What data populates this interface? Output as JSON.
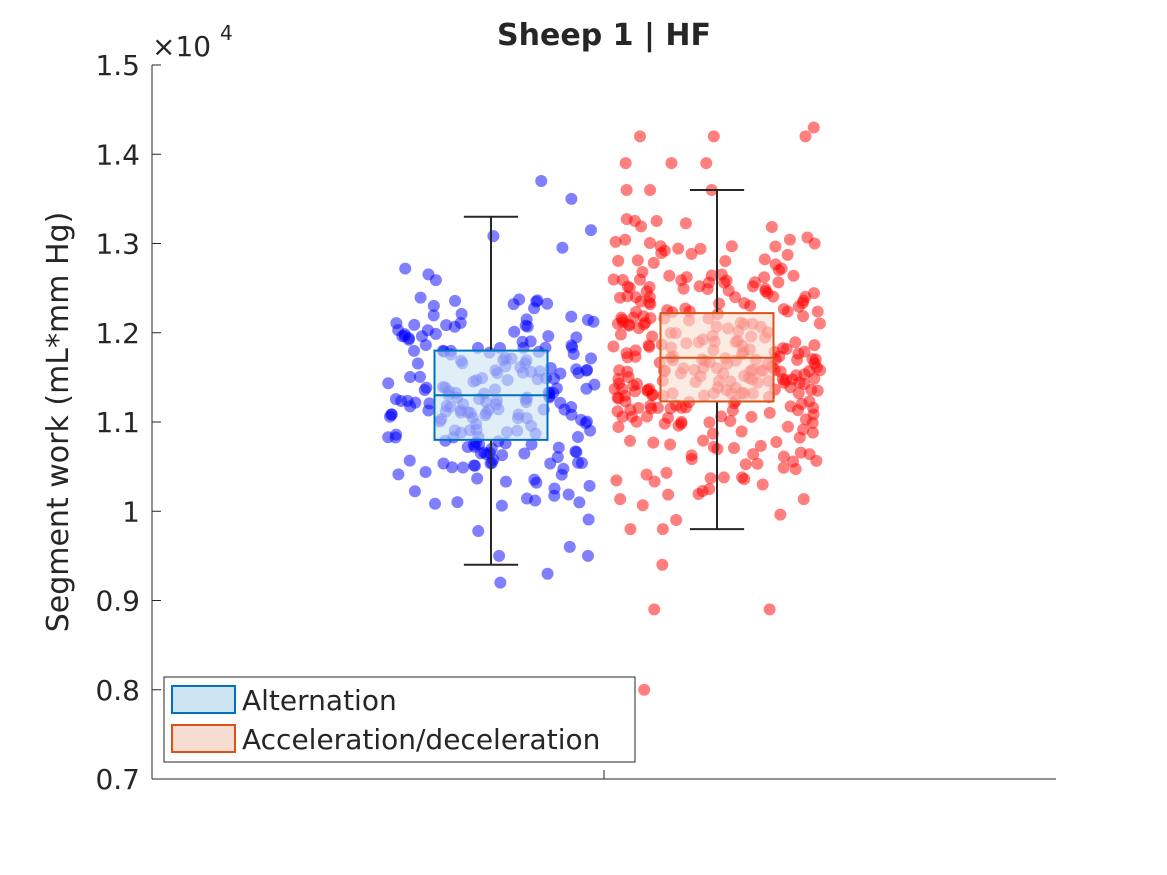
{
  "chart_data": {
    "type": "box",
    "title": "Sheep 1 | HF",
    "ylabel": "Segment work (mL*mm Hg)",
    "xlabel": "",
    "exponent_label": "×10",
    "exponent_power": "4",
    "ylim": [
      0.7,
      1.5
    ],
    "yticks": [
      "0.7",
      "0.8",
      "0.9",
      "1",
      "1.1",
      "1.2",
      "1.3",
      "1.4",
      "1.5"
    ],
    "ytick_values": [
      0.7,
      0.8,
      0.9,
      1.0,
      1.1,
      1.2,
      1.3,
      1.4,
      1.5
    ],
    "legend_placement": "bottom-left",
    "series": [
      {
        "name": "Alternation",
        "box_color": "#0072BD",
        "fill_color": "#cce3f2",
        "point_color": "#0000ff",
        "q1": 1.08,
        "median": 1.13,
        "q3": 1.18,
        "whisker_low": 0.94,
        "whisker_high": 1.33,
        "n_points": 220,
        "outliers": [
          1.35,
          1.37,
          0.92,
          0.93,
          0.95,
          0.95
        ],
        "spread_sd": 0.07,
        "center_offset": -0.25
      },
      {
        "name": "Acceleration/deceleration",
        "box_color": "#D95319",
        "fill_color": "#f7ddd1",
        "point_color": "#ff0000",
        "q1": 1.123,
        "median": 1.172,
        "q3": 1.222,
        "whisker_low": 0.98,
        "whisker_high": 1.36,
        "n_points": 320,
        "outliers": [
          1.43,
          1.42,
          1.42,
          1.42,
          1.39,
          1.39,
          1.39,
          0.89,
          0.89,
          0.94,
          0.8
        ],
        "spread_sd": 0.075,
        "center_offset": 0.25
      }
    ]
  }
}
